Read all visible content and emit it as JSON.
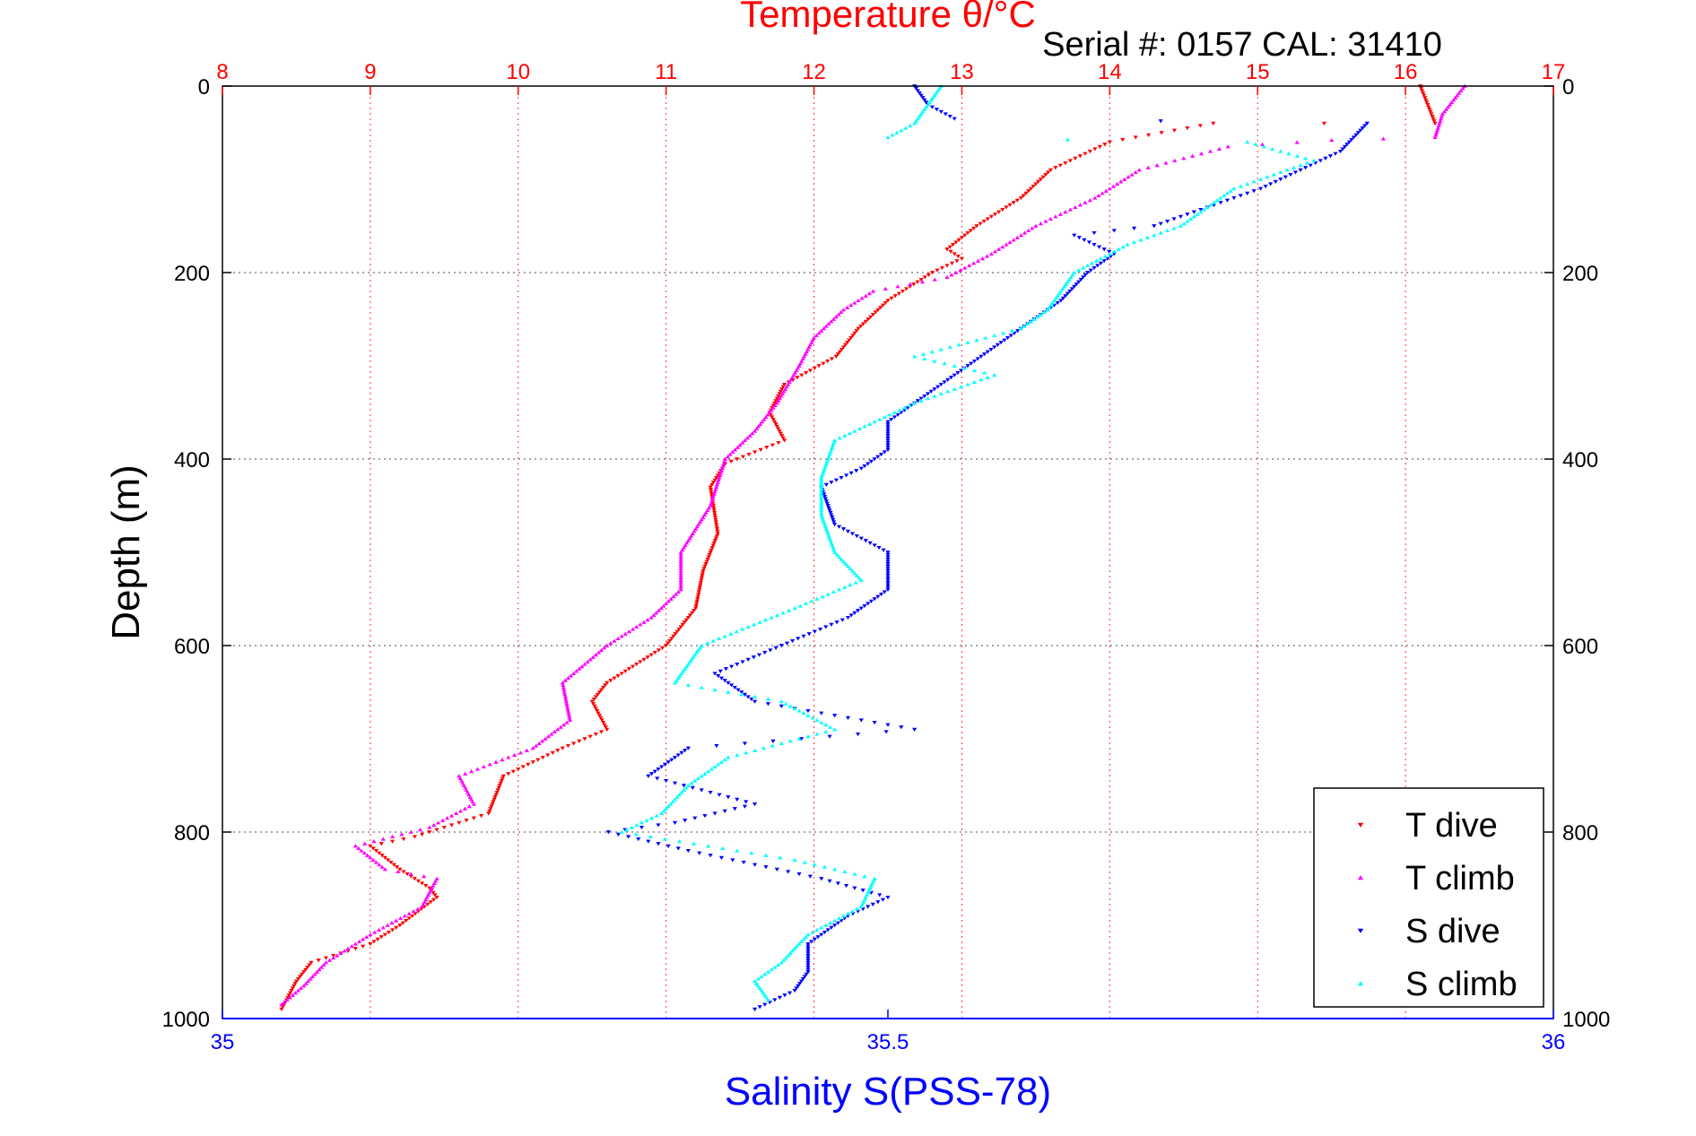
{
  "chart_data": {
    "type": "scatter",
    "title": "Temperature θ/°C",
    "annotation": "Serial #: 0157  CAL: 31410",
    "ylabel": "Depth (m)",
    "xlabel": "Salinity S(PSS-78)",
    "grid": true,
    "legend_position": "bottom-right",
    "axes": {
      "temperature": {
        "position": "top",
        "range": [
          8,
          17
        ],
        "ticks": [
          "8",
          "9",
          "10",
          "11",
          "12",
          "13",
          "14",
          "15",
          "16",
          "17"
        ],
        "color": "#ff0000"
      },
      "salinity": {
        "position": "bottom",
        "range": [
          35,
          36
        ],
        "ticks": [
          "35",
          "35.5",
          "36"
        ],
        "color": "#0000ff"
      },
      "depth": {
        "range": [
          0,
          1000
        ],
        "reversed": true,
        "ticks": [
          "0",
          "200",
          "400",
          "600",
          "800",
          "1000"
        ]
      }
    },
    "series": [
      {
        "name": "T dive",
        "axis": "temperature",
        "color": "#ff0000",
        "marker": "down-triangle",
        "points": [
          [
            16.1,
            0
          ],
          [
            16.15,
            20
          ],
          [
            16.2,
            40
          ],
          [
            14.7,
            40
          ],
          [
            14.0,
            60
          ],
          [
            13.6,
            90
          ],
          [
            13.4,
            120
          ],
          [
            13.1,
            150
          ],
          [
            12.9,
            175
          ],
          [
            13.0,
            185
          ],
          [
            12.8,
            200
          ],
          [
            12.5,
            230
          ],
          [
            12.3,
            260
          ],
          [
            12.15,
            290
          ],
          [
            11.8,
            320
          ],
          [
            11.7,
            350
          ],
          [
            11.8,
            380
          ],
          [
            11.4,
            405
          ],
          [
            11.3,
            430
          ],
          [
            11.35,
            480
          ],
          [
            11.25,
            520
          ],
          [
            11.2,
            560
          ],
          [
            11.0,
            600
          ],
          [
            10.8,
            620
          ],
          [
            10.6,
            640
          ],
          [
            10.5,
            660
          ],
          [
            10.6,
            690
          ],
          [
            10.3,
            710
          ],
          [
            9.9,
            740
          ],
          [
            9.8,
            780
          ],
          [
            9.6,
            790
          ],
          [
            9.3,
            805
          ],
          [
            9.0,
            815
          ],
          [
            9.2,
            840
          ],
          [
            9.4,
            860
          ],
          [
            9.45,
            870
          ],
          [
            9.2,
            900
          ],
          [
            9.0,
            920
          ],
          [
            8.6,
            940
          ],
          [
            8.5,
            960
          ],
          [
            8.4,
            990
          ]
        ]
      },
      {
        "name": "T climb",
        "axis": "temperature",
        "color": "#ff00ff",
        "marker": "up-triangle",
        "points": [
          [
            16.4,
            0
          ],
          [
            16.25,
            30
          ],
          [
            16.2,
            55
          ],
          [
            15.5,
            58
          ],
          [
            14.8,
            65
          ],
          [
            14.2,
            90
          ],
          [
            13.9,
            120
          ],
          [
            13.5,
            150
          ],
          [
            13.2,
            180
          ],
          [
            12.9,
            205
          ],
          [
            12.4,
            220
          ],
          [
            12.2,
            240
          ],
          [
            12.0,
            270
          ],
          [
            11.9,
            300
          ],
          [
            11.75,
            340
          ],
          [
            11.6,
            370
          ],
          [
            11.4,
            400
          ],
          [
            11.3,
            450
          ],
          [
            11.1,
            500
          ],
          [
            11.1,
            540
          ],
          [
            10.9,
            570
          ],
          [
            10.6,
            600
          ],
          [
            10.3,
            640
          ],
          [
            10.35,
            680
          ],
          [
            10.1,
            710
          ],
          [
            9.6,
            740
          ],
          [
            9.7,
            770
          ],
          [
            9.4,
            795
          ],
          [
            8.9,
            815
          ],
          [
            9.1,
            840
          ],
          [
            9.45,
            850
          ],
          [
            9.35,
            880
          ],
          [
            9.0,
            910
          ],
          [
            8.7,
            940
          ],
          [
            8.55,
            965
          ],
          [
            8.4,
            985
          ]
        ]
      },
      {
        "name": "S dive",
        "axis": "salinity",
        "color": "#0000ff",
        "marker": "down-triangle",
        "points": [
          [
            35.52,
            0
          ],
          [
            35.53,
            20
          ],
          [
            35.55,
            35
          ],
          [
            35.86,
            40
          ],
          [
            35.84,
            70
          ],
          [
            35.78,
            110
          ],
          [
            35.7,
            150
          ],
          [
            35.64,
            160
          ],
          [
            35.67,
            180
          ],
          [
            35.65,
            200
          ],
          [
            35.63,
            230
          ],
          [
            35.6,
            260
          ],
          [
            35.58,
            280
          ],
          [
            35.54,
            320
          ],
          [
            35.5,
            360
          ],
          [
            35.5,
            390
          ],
          [
            35.48,
            410
          ],
          [
            35.45,
            430
          ],
          [
            35.46,
            470
          ],
          [
            35.5,
            500
          ],
          [
            35.5,
            540
          ],
          [
            35.47,
            570
          ],
          [
            35.42,
            600
          ],
          [
            35.37,
            630
          ],
          [
            35.4,
            660
          ],
          [
            35.52,
            690
          ],
          [
            35.35,
            710
          ],
          [
            35.32,
            740
          ],
          [
            35.4,
            770
          ],
          [
            35.34,
            790
          ],
          [
            35.29,
            800
          ],
          [
            35.35,
            820
          ],
          [
            35.45,
            850
          ],
          [
            35.5,
            870
          ],
          [
            35.47,
            890
          ],
          [
            35.44,
            920
          ],
          [
            35.44,
            950
          ],
          [
            35.43,
            970
          ],
          [
            35.4,
            990
          ]
        ]
      },
      {
        "name": "S climb",
        "axis": "salinity",
        "color": "#00ffff",
        "marker": "up-triangle",
        "points": [
          [
            35.54,
            0
          ],
          [
            35.53,
            20
          ],
          [
            35.52,
            40
          ],
          [
            35.5,
            55
          ],
          [
            35.77,
            60
          ],
          [
            35.82,
            80
          ],
          [
            35.76,
            110
          ],
          [
            35.72,
            150
          ],
          [
            35.68,
            170
          ],
          [
            35.64,
            200
          ],
          [
            35.62,
            240
          ],
          [
            35.6,
            260
          ],
          [
            35.52,
            290
          ],
          [
            35.58,
            310
          ],
          [
            35.52,
            340
          ],
          [
            35.46,
            380
          ],
          [
            35.45,
            420
          ],
          [
            35.45,
            460
          ],
          [
            35.46,
            500
          ],
          [
            35.48,
            530
          ],
          [
            35.43,
            560
          ],
          [
            35.36,
            600
          ],
          [
            35.34,
            640
          ],
          [
            35.42,
            660
          ],
          [
            35.46,
            690
          ],
          [
            35.38,
            720
          ],
          [
            35.35,
            750
          ],
          [
            35.33,
            780
          ],
          [
            35.3,
            800
          ],
          [
            35.43,
            830
          ],
          [
            35.49,
            850
          ],
          [
            35.48,
            880
          ],
          [
            35.44,
            910
          ],
          [
            35.42,
            940
          ],
          [
            35.4,
            960
          ],
          [
            35.41,
            980
          ]
        ]
      }
    ]
  }
}
